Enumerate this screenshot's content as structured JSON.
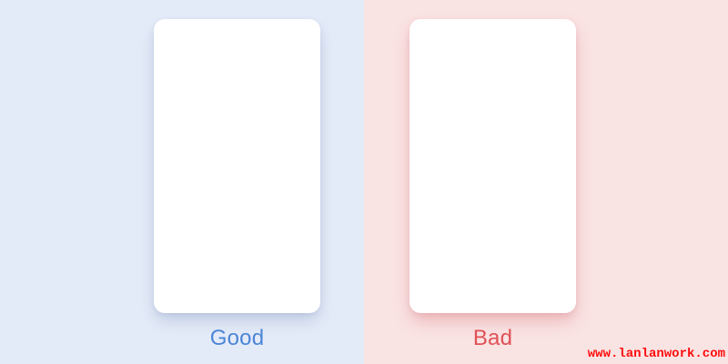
{
  "panels": [
    {
      "id": "good",
      "label": "Good",
      "background": "#E4EBF8",
      "label_color": "#4B86D7",
      "card_color": "#FFFFFF"
    },
    {
      "id": "bad",
      "label": "Bad",
      "background": "#FAE3E3",
      "label_color": "#DF5156",
      "card_color": "#FFFFFF"
    }
  ],
  "watermark": {
    "text": "www.lanlanwork.com",
    "color": "#FF0D0D"
  }
}
